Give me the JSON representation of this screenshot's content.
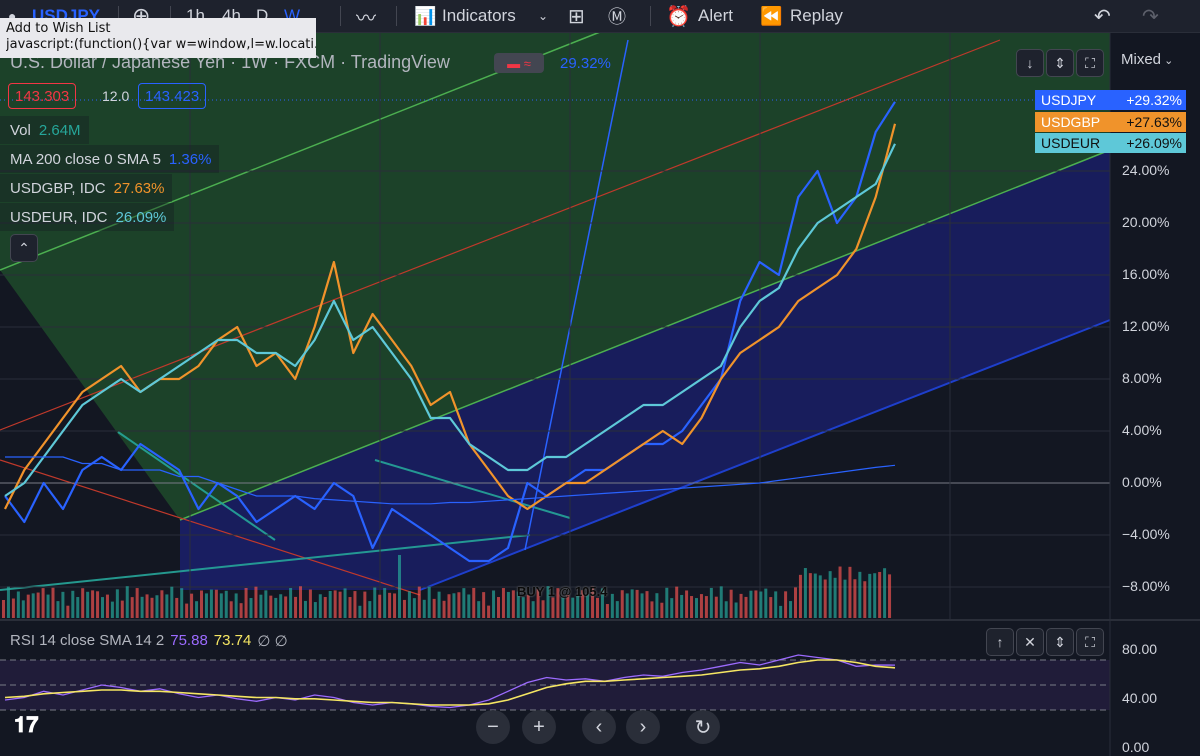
{
  "toolbar": {
    "symbol": "USDJPY",
    "timeframes": [
      "1h",
      "4h",
      "D",
      "W"
    ],
    "active_timeframe": "W",
    "indicators_label": "Indicators",
    "alert_label": "Alert",
    "replay_label": "Replay"
  },
  "tooltip": {
    "title": "Add to Wish List",
    "body": "javascript:(function(){var w=window,l=w.locati..."
  },
  "legend": {
    "title": "U.S. Dollar / Japanese Yen · 1W · FXCM · TradingView",
    "change_pct": "29.32%",
    "bid": "143.303",
    "spread": "12.0",
    "ask": "143.423"
  },
  "indicators": [
    {
      "name": "Vol",
      "value": "2.64M",
      "color": "#26a69a"
    },
    {
      "name": "MA 200 close 0 SMA 5",
      "value": "1.36%",
      "color": "#2962ff"
    },
    {
      "name": "USDGBP, IDC",
      "value": "27.63%",
      "color": "#f0932b"
    },
    {
      "name": "USDEUR, IDC",
      "value": "26.09%",
      "color": "#5ec8d8"
    }
  ],
  "scale_mode": "Mixed",
  "price_chips": [
    {
      "symbol": "USDJPY",
      "value": "+29.32%",
      "color": "#2962ff"
    },
    {
      "symbol": "USDGBP",
      "value": "+27.63%",
      "color": "#f0932b"
    },
    {
      "symbol": "USDEUR",
      "value": "+26.09%",
      "color": "#5ec8d8"
    }
  ],
  "annotation": "BUY 1 @ 105.4",
  "rsi": {
    "label": "RSI 14 close SMA 14 2",
    "value": "75.88",
    "sma_value": "73.74",
    "null_marks": "∅ ∅",
    "axis_ticks": [
      "80.00",
      "40.00",
      "0.00"
    ]
  },
  "chart_data": {
    "type": "line",
    "ylabel": "",
    "y_axis_ticks": [
      "24.00%",
      "20.00%",
      "16.00%",
      "12.00%",
      "8.00%",
      "4.00%",
      "0.00%",
      "−4.00%",
      "−8.00%"
    ],
    "ylim": [
      -9,
      30
    ],
    "series": [
      {
        "name": "USDJPY",
        "color": "#2962ff",
        "values": [
          -1,
          -3,
          0,
          -2,
          1,
          2,
          1,
          3,
          2,
          1,
          -2,
          0,
          -1,
          -3,
          -2,
          -1,
          -2,
          0,
          -1,
          -5,
          -2,
          -3,
          -4,
          -5,
          -6,
          -6,
          -5,
          0,
          -1,
          0,
          1,
          1,
          2,
          3,
          3,
          4,
          6,
          8,
          14,
          17,
          16,
          22,
          24,
          20,
          22,
          27,
          29.32
        ]
      },
      {
        "name": "USDGBP",
        "color": "#f0932b",
        "values": [
          -2,
          1,
          3,
          5,
          7,
          8,
          9,
          7,
          8,
          8,
          9,
          11,
          12,
          9,
          10,
          8,
          12,
          17,
          10,
          13,
          11,
          9,
          6,
          7,
          3,
          1,
          -1,
          -2,
          -1,
          0,
          0,
          1,
          2,
          3,
          4,
          3,
          5,
          8,
          10,
          11,
          12,
          14,
          15,
          16,
          18,
          22,
          27.63
        ]
      },
      {
        "name": "USDEUR",
        "color": "#5ec8d8",
        "values": [
          -1,
          0,
          2,
          4,
          6,
          7,
          8,
          7,
          8,
          9,
          10,
          11,
          11,
          10,
          10,
          9,
          11,
          14,
          11,
          12,
          10,
          8,
          5,
          5,
          3,
          2,
          1,
          1,
          2,
          2,
          3,
          4,
          5,
          6,
          6,
          7,
          8,
          9,
          12,
          14,
          15,
          18,
          20,
          21,
          22,
          23,
          26.09
        ]
      },
      {
        "name": "MA 200",
        "color": "#2962ff",
        "values": [
          2,
          2,
          2,
          2,
          1.5,
          1.5,
          1,
          1,
          1,
          0.5,
          0.5,
          0,
          -0.5,
          -1,
          -1,
          -1,
          -1.2,
          -1.3,
          -1.4,
          -1.5,
          -1.6,
          -1.6,
          -1.6,
          -1.5,
          -1.5,
          -1.4,
          -1.3,
          -1.2,
          -1.1,
          -1,
          -0.9,
          -0.8,
          -0.7,
          -0.6,
          -0.5,
          -0.4,
          -0.3,
          -0.2,
          -0.1,
          0,
          0.2,
          0.4,
          0.6,
          0.8,
          1,
          1.2,
          1.36
        ]
      }
    ],
    "rsi_values": [
      48,
      50,
      55,
      52,
      56,
      60,
      58,
      55,
      57,
      53,
      50,
      52,
      49,
      47,
      50,
      48,
      52,
      50,
      46,
      44,
      46,
      45,
      43,
      42,
      44,
      48,
      55,
      62,
      66,
      64,
      65,
      63,
      66,
      68,
      67,
      70,
      72,
      75,
      78,
      76,
      80,
      84,
      82,
      80,
      75,
      76,
      75.88
    ],
    "rsi_sma_values": [
      50,
      51,
      53,
      54,
      55,
      56,
      56,
      55,
      55,
      54,
      53,
      52,
      51,
      50,
      50,
      49,
      49,
      48,
      47,
      46,
      46,
      45,
      44,
      44,
      44,
      45,
      48,
      53,
      58,
      61,
      63,
      63,
      64,
      65,
      66,
      67,
      68,
      70,
      72,
      73,
      75,
      78,
      80,
      80,
      78,
      75,
      73.74
    ]
  }
}
